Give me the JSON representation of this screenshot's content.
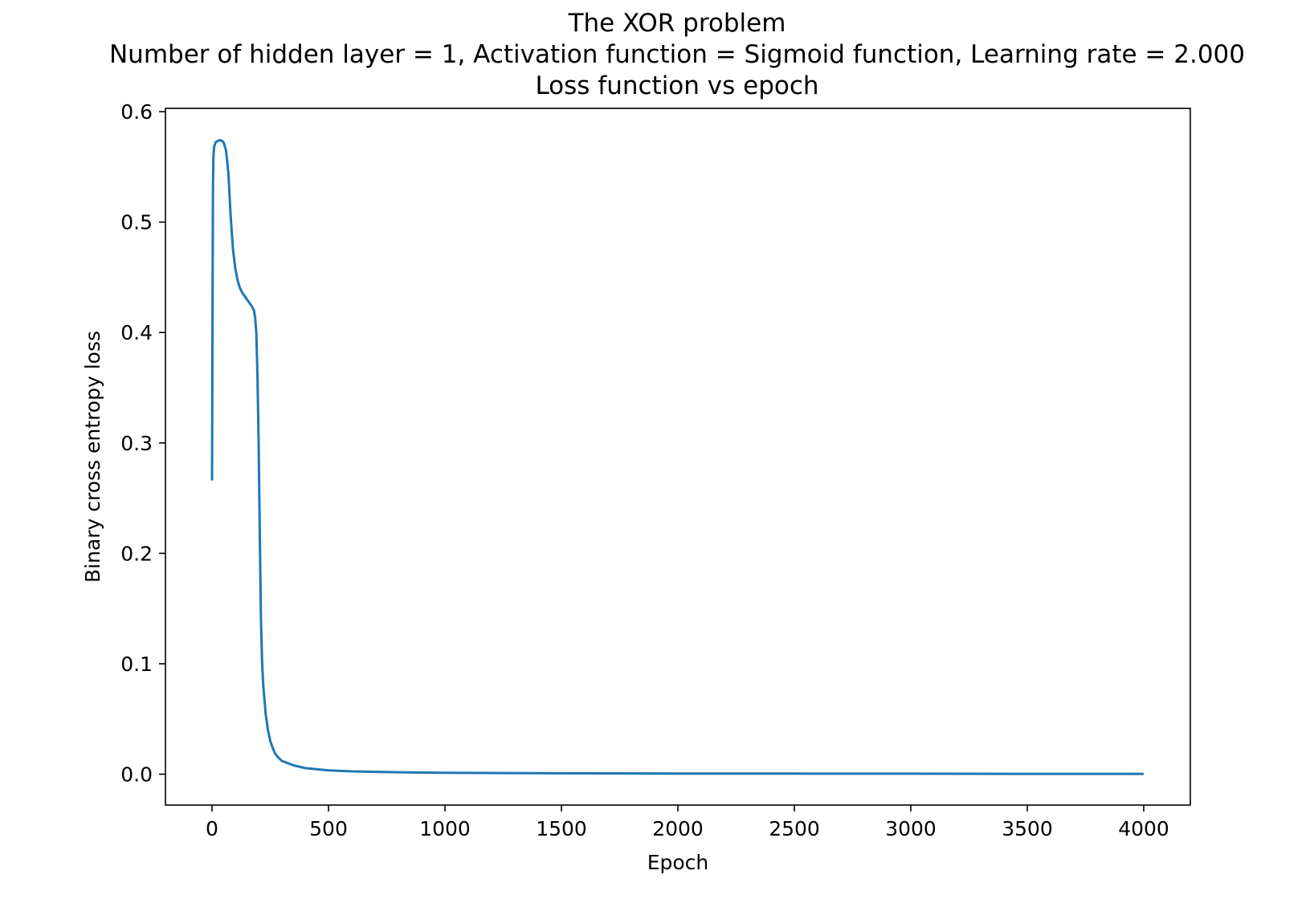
{
  "chart_data": {
    "type": "line",
    "title_lines": [
      "The XOR problem",
      "Number of hidden layer = 1, Activation function = Sigmoid function, Learning rate = 2.000",
      "Loss function vs epoch"
    ],
    "xlabel": "Epoch",
    "ylabel": "Binary cross entropy loss",
    "xlim": [
      -200,
      4200
    ],
    "ylim": [
      -0.028,
      0.603
    ],
    "xticks": [
      0,
      500,
      1000,
      1500,
      2000,
      2500,
      3000,
      3500,
      4000
    ],
    "xtick_labels": [
      "0",
      "500",
      "1000",
      "1500",
      "2000",
      "2500",
      "3000",
      "3500",
      "4000"
    ],
    "yticks": [
      0.0,
      0.1,
      0.2,
      0.3,
      0.4,
      0.5,
      0.6
    ],
    "ytick_labels": [
      "0.0",
      "0.1",
      "0.2",
      "0.3",
      "0.4",
      "0.5",
      "0.6"
    ],
    "grid": false,
    "line_color": "#1f77b4",
    "series": [
      {
        "x": [
          0,
          2,
          4,
          6,
          8,
          10,
          15,
          20,
          30,
          40,
          50,
          60,
          70,
          80,
          90,
          100,
          110,
          120,
          130,
          140,
          150,
          160,
          170,
          180,
          185,
          190,
          195,
          200,
          205,
          210,
          215,
          220,
          230,
          240,
          250,
          260,
          270,
          280,
          300,
          350,
          400,
          500,
          600,
          800,
          1000,
          1500,
          2000,
          2500,
          3000,
          3500,
          4000
        ],
        "y": [
          0.266,
          0.42,
          0.535,
          0.558,
          0.566,
          0.569,
          0.572,
          0.573,
          0.574,
          0.574,
          0.572,
          0.565,
          0.545,
          0.505,
          0.475,
          0.458,
          0.447,
          0.44,
          0.436,
          0.433,
          0.43,
          0.427,
          0.424,
          0.42,
          0.414,
          0.4,
          0.36,
          0.3,
          0.22,
          0.14,
          0.1,
          0.08,
          0.055,
          0.04,
          0.03,
          0.024,
          0.019,
          0.016,
          0.012,
          0.008,
          0.0055,
          0.0035,
          0.0025,
          0.0017,
          0.0013,
          0.0008,
          0.0006,
          0.0005,
          0.0004,
          0.0003,
          0.0003
        ]
      }
    ]
  }
}
